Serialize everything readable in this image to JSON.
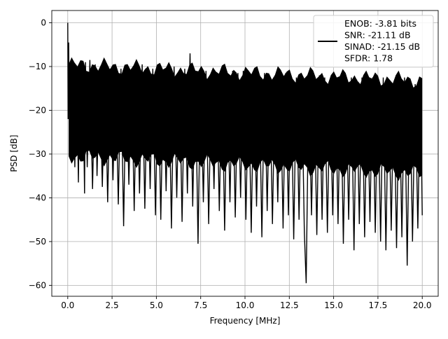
{
  "chart_data": {
    "type": "line",
    "title": "",
    "xlabel": "Frequency [MHz]",
    "ylabel": "PSD [dB]",
    "xlim": [
      -0.9,
      20.9
    ],
    "ylim": [
      -62.5,
      2.8
    ],
    "x_ticks": [
      0.0,
      2.5,
      5.0,
      7.5,
      10.0,
      12.5,
      15.0,
      17.5,
      20.0
    ],
    "x_tick_labels": [
      "0.0",
      "2.5",
      "5.0",
      "7.5",
      "10.0",
      "12.5",
      "15.0",
      "17.5",
      "20.0"
    ],
    "y_ticks": [
      0,
      -10,
      -20,
      -30,
      -40,
      -50,
      -60
    ],
    "y_tick_labels": [
      "0",
      "−10",
      "−20",
      "−30",
      "−40",
      "−50",
      "−60"
    ],
    "grid": true,
    "legend_position": "top-right",
    "series": [
      {
        "name": "",
        "color": "#000000",
        "legend_lines": [
          "ENOB: -3.81 bits",
          "SNR: -21.11 dB",
          "SINAD: -21.15 dB",
          "SFDR: 1.78"
        ],
        "x": [
          0.0,
          0.02,
          0.05,
          0.1,
          0.15,
          0.22,
          0.3,
          0.4,
          0.5,
          0.6,
          0.68,
          0.75,
          0.85,
          0.95,
          1.0,
          1.1,
          1.25,
          1.4,
          1.55,
          1.65,
          1.8,
          1.95,
          2.1,
          2.25,
          2.4,
          2.55,
          2.7,
          2.85,
          3.0,
          3.15,
          3.3,
          3.45,
          3.6,
          3.75,
          3.9,
          4.05,
          4.2,
          4.35,
          4.5,
          4.65,
          4.8,
          4.95,
          5.1,
          5.25,
          5.4,
          5.55,
          5.7,
          5.85,
          6.0,
          6.15,
          6.3,
          6.45,
          6.6,
          6.75,
          6.9,
          7.05,
          7.2,
          7.35,
          7.5,
          7.65,
          7.8,
          7.95,
          8.1,
          8.25,
          8.4,
          8.55,
          8.7,
          8.85,
          9.0,
          9.15,
          9.3,
          9.45,
          9.6,
          9.75,
          9.9,
          10.05,
          10.2,
          10.35,
          10.5,
          10.65,
          10.8,
          10.95,
          11.1,
          11.25,
          11.4,
          11.55,
          11.7,
          11.85,
          12.0,
          12.15,
          12.3,
          12.45,
          12.6,
          12.75,
          12.9,
          13.05,
          13.2,
          13.35,
          13.45,
          13.6,
          13.75,
          13.9,
          14.05,
          14.2,
          14.35,
          14.5,
          14.65,
          14.8,
          14.95,
          15.1,
          15.25,
          15.4,
          15.55,
          15.7,
          15.85,
          16.0,
          16.15,
          16.3,
          16.45,
          16.6,
          16.75,
          16.9,
          17.05,
          17.2,
          17.35,
          17.5,
          17.65,
          17.8,
          17.95,
          18.1,
          18.25,
          18.4,
          18.55,
          18.7,
          18.85,
          19.0,
          19.15,
          19.3,
          19.45,
          19.6,
          19.75,
          19.9,
          20.0
        ],
        "y": [
          0.0,
          -22.0,
          -4.5,
          -26.0,
          -9.0,
          -29.0,
          -11.0,
          -33.0,
          -10.0,
          -36.5,
          -9.5,
          -31.0,
          -10.0,
          -39.0,
          -9.0,
          -33.0,
          -8.5,
          -38.0,
          -9.5,
          -35.0,
          -11.0,
          -37.5,
          -8.5,
          -41.0,
          -10.5,
          -36.0,
          -11.5,
          -41.5,
          -10.5,
          -46.5,
          -10.0,
          -37.0,
          -10.5,
          -43.0,
          -10.5,
          -39.0,
          -9.5,
          -42.5,
          -10.0,
          -38.0,
          -10.5,
          -44.0,
          -10.0,
          -45.0,
          -11.0,
          -38.5,
          -10.0,
          -47.0,
          -10.0,
          -40.0,
          -11.0,
          -45.5,
          -10.5,
          -39.0,
          -7.0,
          -42.0,
          -11.0,
          -50.5,
          -10.5,
          -41.0,
          -11.0,
          -46.0,
          -12.0,
          -38.0,
          -11.5,
          -43.0,
          -11.0,
          -47.5,
          -12.0,
          -41.0,
          -11.0,
          -44.5,
          -11.5,
          -40.0,
          -11.0,
          -45.0,
          -12.5,
          -48.0,
          -11.5,
          -42.0,
          -12.0,
          -49.0,
          -11.5,
          -43.0,
          -12.5,
          -46.0,
          -12.0,
          -41.0,
          -12.5,
          -47.0,
          -11.5,
          -44.0,
          -12.0,
          -49.5,
          -12.5,
          -45.0,
          -12.0,
          -48.0,
          -59.5,
          -12.5,
          -44.0,
          -13.0,
          -48.5,
          -12.0,
          -45.0,
          -12.5,
          -48.0,
          -13.0,
          -44.0,
          -12.5,
          -46.0,
          -12.0,
          -50.5,
          -13.0,
          -45.0,
          -12.5,
          -52.0,
          -13.0,
          -46.0,
          -12.5,
          -49.0,
          -13.5,
          -45.5,
          -12.5,
          -48.0,
          -13.0,
          -50.0,
          -12.5,
          -52.0,
          -13.0,
          -47.5,
          -13.5,
          -51.5,
          -13.0,
          -49.0,
          -12.5,
          -55.5,
          -13.0,
          -50.0,
          -14.0,
          -47.0,
          -13.5,
          -44.0
        ]
      }
    ]
  }
}
